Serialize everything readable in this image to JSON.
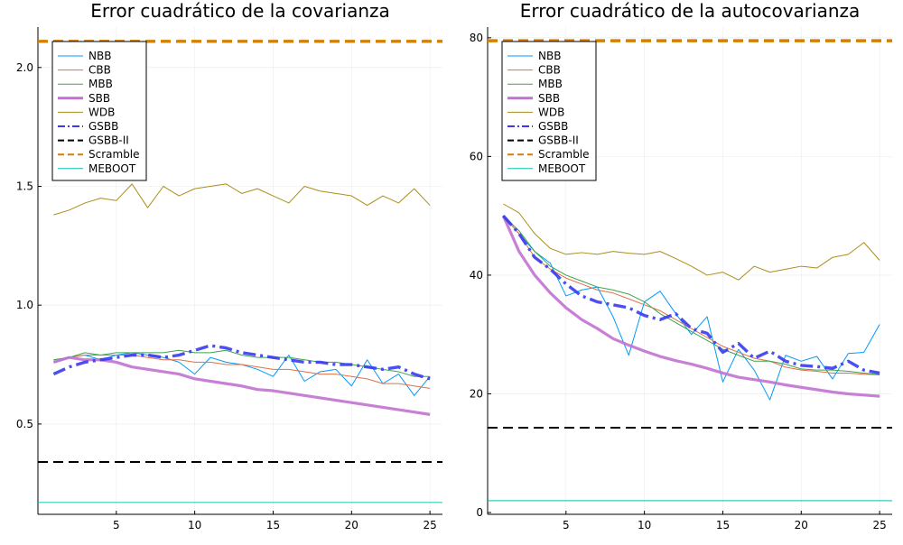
{
  "colors": {
    "NBB": "#009af9",
    "CBB": "#e26f46",
    "MBB": "#3da44d",
    "SBB": "#c271d2",
    "WDB": "#ac8e18",
    "GSBB": "#3a3bf0",
    "GSBB-II": "#000000",
    "Scramble": "#d58000",
    "MEBOOT": "#00c0b0"
  },
  "chart_data": [
    {
      "type": "line",
      "title": "Error cuadrático de la covarianza",
      "xlabel": "",
      "ylabel": "",
      "xlim": [
        0,
        25.8
      ],
      "ylim": [
        0.12,
        2.17
      ],
      "xticks": [
        5,
        10,
        15,
        20,
        25
      ],
      "yticks": [
        0.5,
        1.0,
        1.5,
        2.0
      ],
      "ytick_labels": [
        "0.5",
        "1.0",
        "1.5",
        "2.0"
      ],
      "grid": true,
      "legend_position": "top-left",
      "x": [
        1,
        2,
        3,
        4,
        5,
        6,
        7,
        8,
        9,
        10,
        11,
        12,
        13,
        14,
        15,
        16,
        17,
        18,
        19,
        20,
        21,
        22,
        23,
        24,
        25
      ],
      "series": [
        {
          "name": "NBB",
          "style": "thin",
          "values": [
            0.76,
            0.78,
            0.79,
            0.77,
            0.79,
            0.8,
            0.79,
            0.78,
            0.76,
            0.71,
            0.78,
            0.76,
            0.75,
            0.73,
            0.7,
            0.79,
            0.68,
            0.72,
            0.73,
            0.66,
            0.77,
            0.67,
            0.71,
            0.62,
            0.7
          ]
        },
        {
          "name": "CBB",
          "style": "thin",
          "values": [
            0.77,
            0.78,
            0.79,
            0.79,
            0.79,
            0.79,
            0.78,
            0.77,
            0.77,
            0.76,
            0.76,
            0.75,
            0.75,
            0.74,
            0.73,
            0.73,
            0.72,
            0.71,
            0.71,
            0.7,
            0.69,
            0.67,
            0.67,
            0.66,
            0.65
          ]
        },
        {
          "name": "MBB",
          "style": "thin",
          "values": [
            0.77,
            0.78,
            0.8,
            0.79,
            0.8,
            0.8,
            0.8,
            0.8,
            0.81,
            0.8,
            0.8,
            0.81,
            0.79,
            0.78,
            0.78,
            0.78,
            0.77,
            0.76,
            0.76,
            0.75,
            0.74,
            0.73,
            0.72,
            0.7,
            0.7
          ]
        },
        {
          "name": "SBB",
          "style": "thick",
          "values": [
            0.76,
            0.78,
            0.77,
            0.77,
            0.76,
            0.74,
            0.73,
            0.72,
            0.71,
            0.69,
            0.68,
            0.67,
            0.66,
            0.645,
            0.64,
            0.63,
            0.62,
            0.61,
            0.6,
            0.59,
            0.58,
            0.57,
            0.56,
            0.55,
            0.54
          ]
        },
        {
          "name": "WDB",
          "style": "thin",
          "values": [
            1.38,
            1.4,
            1.43,
            1.45,
            1.44,
            1.51,
            1.41,
            1.5,
            1.46,
            1.49,
            1.5,
            1.51,
            1.47,
            1.49,
            1.46,
            1.43,
            1.5,
            1.48,
            1.47,
            1.46,
            1.42,
            1.46,
            1.43,
            1.49,
            1.42
          ]
        },
        {
          "name": "GSBB",
          "style": "dashdot",
          "values": [
            0.71,
            0.74,
            0.76,
            0.77,
            0.78,
            0.79,
            0.79,
            0.78,
            0.79,
            0.81,
            0.83,
            0.82,
            0.8,
            0.79,
            0.78,
            0.77,
            0.76,
            0.76,
            0.75,
            0.75,
            0.74,
            0.73,
            0.74,
            0.71,
            0.69
          ]
        },
        {
          "name": "GSBB-II",
          "style": "hline",
          "values": [
            0.34,
            0.34,
            0.34,
            0.34,
            0.34,
            0.34,
            0.34,
            0.34,
            0.34,
            0.34,
            0.34,
            0.34,
            0.34,
            0.34,
            0.34,
            0.34,
            0.34,
            0.34,
            0.34,
            0.34,
            0.34,
            0.34,
            0.34,
            0.34,
            0.34
          ]
        },
        {
          "name": "Scramble",
          "style": "hline",
          "values": [
            2.11,
            2.11,
            2.11,
            2.11,
            2.11,
            2.11,
            2.11,
            2.11,
            2.11,
            2.11,
            2.11,
            2.11,
            2.11,
            2.11,
            2.11,
            2.11,
            2.11,
            2.11,
            2.11,
            2.11,
            2.11,
            2.11,
            2.11,
            2.11,
            2.11
          ]
        },
        {
          "name": "MEBOOT",
          "style": "hline",
          "values": [
            0.17,
            0.17,
            0.17,
            0.17,
            0.17,
            0.17,
            0.17,
            0.17,
            0.17,
            0.17,
            0.17,
            0.17,
            0.17,
            0.17,
            0.17,
            0.17,
            0.17,
            0.17,
            0.17,
            0.17,
            0.17,
            0.17,
            0.17,
            0.17,
            0.17
          ]
        }
      ]
    },
    {
      "type": "line",
      "title": "Error cuadrático de la autocovarianza",
      "xlabel": "",
      "ylabel": "",
      "xlim": [
        0,
        25.8
      ],
      "ylim": [
        -0.3,
        81.8
      ],
      "xticks": [
        5,
        10,
        15,
        20,
        25
      ],
      "yticks": [
        0,
        20,
        40,
        60,
        80
      ],
      "ytick_labels": [
        "0",
        "20",
        "40",
        "60",
        "80"
      ],
      "grid": true,
      "legend_position": "top-left",
      "x": [
        1,
        2,
        3,
        4,
        5,
        6,
        7,
        8,
        9,
        10,
        11,
        12,
        13,
        14,
        15,
        16,
        17,
        18,
        19,
        20,
        21,
        22,
        23,
        24,
        25
      ],
      "series": [
        {
          "name": "NBB",
          "style": "thin",
          "values": [
            50.0,
            47.0,
            44.0,
            42.0,
            36.5,
            37.5,
            38.0,
            33.0,
            26.5,
            35.5,
            37.3,
            33.5,
            30.0,
            33.0,
            22.0,
            27.5,
            24.0,
            19.0,
            26.5,
            25.5,
            26.3,
            22.5,
            26.8,
            27.0,
            31.7
          ]
        },
        {
          "name": "CBB",
          "style": "thin",
          "values": [
            50.0,
            47.0,
            43.0,
            41.0,
            39.5,
            38.5,
            37.5,
            37.0,
            36.0,
            35.0,
            34.0,
            32.5,
            31.0,
            29.5,
            28.0,
            27.0,
            26.0,
            25.5,
            24.5,
            24.0,
            23.8,
            23.5,
            23.5,
            23.3,
            23.2
          ]
        },
        {
          "name": "MBB",
          "style": "thin",
          "values": [
            50.0,
            47.5,
            44.0,
            41.5,
            40.0,
            39.0,
            38.0,
            37.5,
            36.8,
            35.5,
            33.5,
            32.0,
            30.5,
            29.0,
            27.5,
            26.5,
            25.5,
            25.5,
            25.0,
            24.2,
            24.0,
            24.0,
            23.8,
            23.5,
            23.2
          ]
        },
        {
          "name": "SBB",
          "style": "thick",
          "values": [
            50.0,
            44.0,
            40.0,
            37.0,
            34.5,
            32.5,
            31.0,
            29.3,
            28.2,
            27.2,
            26.3,
            25.6,
            25.0,
            24.3,
            23.5,
            22.8,
            22.4,
            22.0,
            21.5,
            21.1,
            20.7,
            20.3,
            20.0,
            19.8,
            19.6
          ]
        },
        {
          "name": "WDB",
          "style": "thin",
          "values": [
            52.0,
            50.5,
            47.0,
            44.5,
            43.5,
            43.8,
            43.5,
            44.0,
            43.7,
            43.5,
            44.0,
            42.8,
            41.5,
            40.0,
            40.5,
            39.2,
            41.5,
            40.5,
            41.0,
            41.5,
            41.2,
            43.0,
            43.5,
            45.5,
            42.5
          ]
        },
        {
          "name": "GSBB",
          "style": "dashdot",
          "values": [
            50.0,
            47.0,
            43.0,
            41.0,
            38.5,
            36.5,
            35.5,
            35.0,
            34.5,
            33.2,
            32.5,
            33.5,
            31.0,
            30.2,
            27.0,
            28.5,
            26.0,
            27.2,
            25.5,
            24.8,
            24.6,
            24.3,
            25.5,
            24.0,
            23.5
          ]
        },
        {
          "name": "GSBB-II",
          "style": "hline",
          "values": [
            14.3,
            14.3,
            14.3,
            14.3,
            14.3,
            14.3,
            14.3,
            14.3,
            14.3,
            14.3,
            14.3,
            14.3,
            14.3,
            14.3,
            14.3,
            14.3,
            14.3,
            14.3,
            14.3,
            14.3,
            14.3,
            14.3,
            14.3,
            14.3,
            14.3
          ]
        },
        {
          "name": "Scramble",
          "style": "hline",
          "values": [
            79.5,
            79.5,
            79.5,
            79.5,
            79.5,
            79.5,
            79.5,
            79.5,
            79.5,
            79.5,
            79.5,
            79.5,
            79.5,
            79.5,
            79.5,
            79.5,
            79.5,
            79.5,
            79.5,
            79.5,
            79.5,
            79.5,
            79.5,
            79.5,
            79.5
          ]
        },
        {
          "name": "MEBOOT",
          "style": "hline",
          "values": [
            2.0,
            2.0,
            2.0,
            2.0,
            2.0,
            2.0,
            2.0,
            2.0,
            2.0,
            2.0,
            2.0,
            2.0,
            2.0,
            2.0,
            2.0,
            2.0,
            2.0,
            2.0,
            2.0,
            2.0,
            2.0,
            2.0,
            2.0,
            2.0,
            2.0
          ]
        }
      ]
    }
  ]
}
